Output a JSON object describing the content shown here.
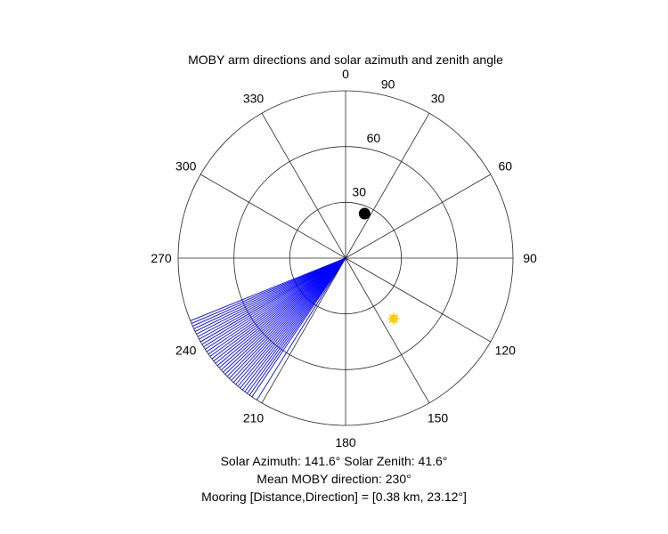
{
  "chart_data": {
    "type": "polar",
    "title": "MOBY arm directions and solar azimuth and zenith angle",
    "theta_zero": "top",
    "theta_direction": "clockwise",
    "theta_ticks": [
      0,
      30,
      60,
      90,
      120,
      150,
      180,
      210,
      240,
      270,
      300,
      330
    ],
    "theta_tick_labels": [
      "0",
      "30",
      "60",
      "90",
      "120",
      "150",
      "180",
      "210",
      "240",
      "270",
      "300",
      "330"
    ],
    "r_range": [
      0,
      90
    ],
    "r_ticks": [
      30,
      60,
      90
    ],
    "r_tick_labels": [
      "30",
      "60",
      "90"
    ],
    "r_label_angle": 15,
    "grid": true,
    "arm_directions": {
      "color": "#0000ff",
      "length": 90,
      "angles": [
        212,
        214,
        215,
        216,
        217,
        218,
        219,
        220,
        221,
        222,
        223,
        224,
        225,
        226,
        227,
        228,
        229,
        230,
        231,
        232,
        233,
        234,
        235,
        236,
        237,
        238,
        239,
        240,
        241,
        242,
        243,
        244,
        245,
        246,
        247,
        248
      ]
    },
    "mooring_point": {
      "theta": 23.12,
      "r": 26,
      "color": "#000000"
    },
    "sun_point": {
      "theta": 141.6,
      "r": 41.6,
      "color": "#ffcc00"
    }
  },
  "captions": {
    "solar": "Solar Azimuth: 141.6° Solar Zenith: 41.6°",
    "mean_direction": "Mean MOBY direction: 230°",
    "mooring": "Mooring [Distance,Direction] = [0.38 km, 23.12°]"
  }
}
